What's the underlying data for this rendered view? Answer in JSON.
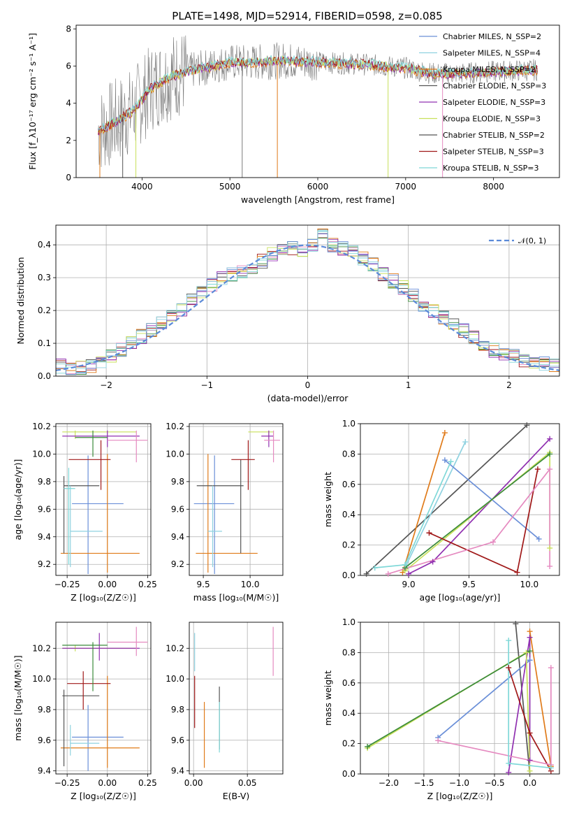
{
  "figure_title": "PLATE=1498, MJD=52914, FIBERID=0598, z=0.085",
  "colors": {
    "Chabrier MILES": "#6a8fd8",
    "Salpeter MILES": "#8fd2e0",
    "Kroupa MILES": "#e07b1a",
    "Chabrier ELODIE": "#555555",
    "Salpeter ELODIE": "#9030b0",
    "Kroupa ELODIE": "#c8e05a",
    "Chabrier STELIB": "#555555",
    "Salpeter STELIB": "#a01818",
    "Kroupa STELIB": "#7fd8d8",
    "extra_pink": "#e58ac0",
    "extra_green": "#3a8a3a",
    "normal": "#5b8ad8"
  },
  "chart_data": [
    {
      "id": "spectrum",
      "type": "line",
      "title": "PLATE=1498, MJD=52914, FIBERID=0598, z=0.085",
      "xlabel": "wavelength [Angstrom, rest frame]",
      "ylabel": "Flux [f_λ10⁻¹⁷ erg cm⁻² s⁻¹ A⁻¹]",
      "xlim": [
        3250,
        8750
      ],
      "ylim": [
        0,
        8.2
      ],
      "xticks": [
        "4000",
        "5000",
        "6000",
        "7000",
        "8000"
      ],
      "yticks": [
        "0",
        "2",
        "4",
        "6",
        "8"
      ],
      "legend_position": "top-right",
      "legend": [
        "Chabrier MILES, N_SSP=2",
        "Salpeter MILES, N_SSP=4",
        "Kroupa MILES, N_SSP=2",
        "Chabrier ELODIE, N_SSP=3",
        "Salpeter ELODIE, N_SSP=3",
        "Kroupa ELODIE, N_SSP=3",
        "Chabrier STELIB, N_SSP=2",
        "Salpeter STELIB, N_SSP=3",
        "Kroupa STELIB, N_SSP=3"
      ],
      "continuum": [
        [
          3500,
          2.5
        ],
        [
          3700,
          3.0
        ],
        [
          3900,
          3.6
        ],
        [
          4000,
          4.2
        ],
        [
          4100,
          4.8
        ],
        [
          4300,
          5.4
        ],
        [
          4500,
          5.7
        ],
        [
          4800,
          6.0
        ],
        [
          5000,
          6.2
        ],
        [
          5300,
          6.2
        ],
        [
          5600,
          6.3
        ],
        [
          6000,
          6.2
        ],
        [
          6500,
          6.1
        ],
        [
          7000,
          5.9
        ],
        [
          7300,
          5.6
        ],
        [
          7600,
          5.6
        ],
        [
          8000,
          5.7
        ],
        [
          8500,
          5.8
        ]
      ]
    },
    {
      "id": "residuals",
      "type": "bar",
      "xlabel": "(data-model)/error",
      "ylabel": "Normed distribution",
      "xlim": [
        -2.5,
        2.5
      ],
      "ylim": [
        0,
        0.46
      ],
      "xticks": [
        "−2",
        "−1",
        "0",
        "1",
        "2"
      ],
      "yticks": [
        "0.0",
        "0.1",
        "0.2",
        "0.3",
        "0.4"
      ],
      "legend": "𝒩(0, 1)",
      "legend_position": "top-right",
      "bin_width": 0.1,
      "histogram": [
        0.03,
        0.02,
        0.025,
        0.03,
        0.04,
        0.06,
        0.08,
        0.1,
        0.12,
        0.14,
        0.16,
        0.18,
        0.2,
        0.23,
        0.26,
        0.28,
        0.3,
        0.31,
        0.32,
        0.33,
        0.35,
        0.37,
        0.38,
        0.39,
        0.38,
        0.4,
        0.43,
        0.4,
        0.39,
        0.38,
        0.36,
        0.34,
        0.31,
        0.29,
        0.27,
        0.25,
        0.22,
        0.2,
        0.18,
        0.16,
        0.14,
        0.12,
        0.1,
        0.08,
        0.07,
        0.06,
        0.05,
        0.045,
        0.04,
        0.035
      ]
    },
    {
      "id": "age_vs_Z",
      "type": "scatter",
      "xlabel": "Z [log₁₀(Z/Z☉)]",
      "ylabel": "age  [log₁₀(age/yr)]",
      "xlim": [
        -0.32,
        0.27
      ],
      "ylim": [
        9.12,
        10.22
      ],
      "xticks": [
        "−0.25",
        "0.00",
        "0.25"
      ],
      "yticks": [
        "9.2",
        "9.4",
        "9.6",
        "9.8",
        "10.0",
        "10.2"
      ],
      "points": [
        {
          "c": "#6a8fd8",
          "x": -0.12,
          "y": 9.64,
          "xe": [
            -0.22,
            0.1
          ],
          "ye": [
            9.13,
            9.99
          ]
        },
        {
          "c": "#e07b1a",
          "x": 0.0,
          "y": 9.28,
          "xe": [
            -0.29,
            0.2
          ],
          "ye": [
            9.14,
            10.0
          ]
        },
        {
          "c": "#555555",
          "x": -0.27,
          "y": 9.77,
          "xe": [
            -0.27,
            -0.05
          ],
          "ye": [
            9.28,
            9.84
          ]
        },
        {
          "c": "#8fd2e0",
          "x": -0.23,
          "y": 9.44,
          "xe": [
            -0.23,
            -0.03
          ],
          "ye": [
            9.18,
            9.77
          ]
        },
        {
          "c": "#c8e05a",
          "x": -0.2,
          "y": 10.16,
          "xe": [
            -0.28,
            0.18
          ],
          "ye": [
            10.11,
            10.17
          ]
        },
        {
          "c": "#9030b0",
          "x": 0.0,
          "y": 10.13,
          "xe": [
            -0.28,
            0.2
          ],
          "ye": [
            10.05,
            10.17
          ]
        },
        {
          "c": "#a01818",
          "x": -0.04,
          "y": 9.96,
          "xe": [
            -0.24,
            0.02
          ],
          "ye": [
            9.74,
            10.1
          ]
        },
        {
          "c": "#3a8a3a",
          "x": -0.09,
          "y": 10.12,
          "xe": [
            -0.2,
            0.0
          ],
          "ye": [
            9.98,
            10.17
          ]
        },
        {
          "c": "#e58ac0",
          "x": 0.18,
          "y": 10.1,
          "xe": [
            0.0,
            0.25
          ],
          "ye": [
            9.94,
            10.17
          ]
        },
        {
          "c": "#7fd8d8",
          "x": -0.24,
          "y": 9.75,
          "xe": [
            -0.27,
            -0.2
          ],
          "ye": [
            9.2,
            9.9
          ]
        }
      ]
    },
    {
      "id": "age_vs_mass",
      "type": "scatter",
      "xlabel": "mass [log₁₀(M/M☉)]",
      "ylabel": "",
      "xlim": [
        9.35,
        10.35
      ],
      "ylim": [
        9.12,
        10.22
      ],
      "xticks": [
        "9.5",
        "10.0"
      ],
      "yticks": [
        "9.2",
        "9.4",
        "9.6",
        "9.8",
        "10.0",
        "10.2"
      ],
      "points": [
        {
          "c": "#6a8fd8",
          "x": 9.62,
          "y": 9.64,
          "xe": [
            9.4,
            9.83
          ],
          "ye": [
            9.13,
            9.99
          ]
        },
        {
          "c": "#e07b1a",
          "x": 9.55,
          "y": 9.28,
          "xe": [
            9.42,
            10.08
          ],
          "ye": [
            9.14,
            10.0
          ]
        },
        {
          "c": "#555555",
          "x": 9.9,
          "y": 9.77,
          "xe": [
            9.43,
            9.93
          ],
          "ye": [
            9.28,
            9.96
          ]
        },
        {
          "c": "#8fd2e0",
          "x": 9.6,
          "y": 9.44,
          "xe": [
            9.55,
            9.7
          ],
          "ye": [
            9.18,
            9.77
          ]
        },
        {
          "c": "#c8e05a",
          "x": 10.2,
          "y": 10.16,
          "xe": [
            9.98,
            10.25
          ],
          "ye": [
            10.11,
            10.17
          ]
        },
        {
          "c": "#9030b0",
          "x": 10.2,
          "y": 10.13,
          "xe": [
            10.12,
            10.25
          ],
          "ye": [
            10.05,
            10.17
          ]
        },
        {
          "c": "#a01818",
          "x": 9.98,
          "y": 9.96,
          "xe": [
            9.8,
            10.05
          ],
          "ye": [
            9.74,
            10.1
          ]
        },
        {
          "c": "#e58ac0",
          "x": 10.25,
          "y": 10.1,
          "xe": [
            10.15,
            10.32
          ],
          "ye": [
            9.94,
            10.17
          ]
        }
      ]
    },
    {
      "id": "weight_vs_age",
      "type": "line",
      "xlabel": "age  [log₁₀(age/yr)]",
      "ylabel": "mass weight",
      "xlim": [
        8.6,
        10.25
      ],
      "ylim": [
        0.0,
        1.0
      ],
      "xticks": [
        "9.0",
        "9.5",
        "10.0"
      ],
      "yticks": [
        "0.0",
        "0.2",
        "0.4",
        "0.6",
        "0.8",
        "1.0"
      ],
      "series": [
        {
          "c": "#555555",
          "pts": [
            [
              8.65,
              0.01
            ],
            [
              9.98,
              0.99
            ]
          ]
        },
        {
          "c": "#e07b1a",
          "pts": [
            [
              8.95,
              0.02
            ],
            [
              9.3,
              0.94
            ]
          ]
        },
        {
          "c": "#8fd2e0",
          "pts": [
            [
              8.97,
              0.05
            ],
            [
              9.47,
              0.88
            ]
          ]
        },
        {
          "c": "#6a8fd8",
          "pts": [
            [
              9.3,
              0.76
            ],
            [
              10.08,
              0.24
            ]
          ]
        },
        {
          "c": "#9030b0",
          "pts": [
            [
              9.0,
              0.01
            ],
            [
              9.2,
              0.09
            ],
            [
              10.17,
              0.9
            ]
          ]
        },
        {
          "c": "#c8e05a",
          "pts": [
            [
              8.97,
              0.03
            ],
            [
              10.17,
              0.81
            ],
            [
              10.17,
              0.18
            ]
          ]
        },
        {
          "c": "#3a8a3a",
          "pts": [
            [
              8.97,
              0.05
            ],
            [
              10.17,
              0.8
            ]
          ]
        },
        {
          "c": "#a01818",
          "pts": [
            [
              9.17,
              0.28
            ],
            [
              9.9,
              0.02
            ],
            [
              10.07,
              0.7
            ]
          ]
        },
        {
          "c": "#e58ac0",
          "pts": [
            [
              8.83,
              0.01
            ],
            [
              9.7,
              0.22
            ],
            [
              10.17,
              0.7
            ],
            [
              10.17,
              0.06
            ]
          ]
        },
        {
          "c": "#7fd8d8",
          "pts": [
            [
              8.72,
              0.05
            ],
            [
              8.97,
              0.07
            ],
            [
              9.35,
              0.75
            ]
          ]
        }
      ]
    },
    {
      "id": "mass_vs_Z",
      "type": "scatter",
      "xlabel": "Z [log₁₀(Z/Z☉)]",
      "ylabel": "mass [log₁₀(M/M☉)]",
      "xlim": [
        -0.32,
        0.27
      ],
      "ylim": [
        9.38,
        10.37
      ],
      "xticks": [
        "−0.25",
        "0.00",
        "0.25"
      ],
      "yticks": [
        "9.4",
        "9.6",
        "9.8",
        "10.0",
        "10.2"
      ],
      "points": [
        {
          "c": "#6a8fd8",
          "x": -0.12,
          "y": 9.62,
          "xe": [
            -0.22,
            0.1
          ],
          "ye": [
            9.4,
            9.83
          ]
        },
        {
          "c": "#e07b1a",
          "x": 0.0,
          "y": 9.55,
          "xe": [
            -0.29,
            0.2
          ],
          "ye": [
            9.42,
            10.02
          ]
        },
        {
          "c": "#555555",
          "x": -0.27,
          "y": 9.89,
          "xe": [
            -0.28,
            -0.05
          ],
          "ye": [
            9.43,
            9.93
          ]
        },
        {
          "c": "#8fd2e0",
          "x": -0.23,
          "y": 9.58,
          "xe": [
            -0.23,
            -0.05
          ],
          "ye": [
            9.5,
            9.7
          ]
        },
        {
          "c": "#c8e05a",
          "x": -0.2,
          "y": 10.2,
          "xe": [
            -0.28,
            0.18
          ],
          "ye": [
            10.18,
            10.22
          ]
        },
        {
          "c": "#9030b0",
          "x": -0.05,
          "y": 10.2,
          "xe": [
            -0.28,
            0.2
          ],
          "ye": [
            10.12,
            10.3
          ]
        },
        {
          "c": "#a01818",
          "x": -0.15,
          "y": 9.97,
          "xe": [
            -0.25,
            0.02
          ],
          "ye": [
            9.8,
            10.05
          ]
        },
        {
          "c": "#3a8a3a",
          "x": -0.09,
          "y": 10.22,
          "xe": [
            -0.28,
            0.0
          ],
          "ye": [
            9.92,
            10.24
          ]
        },
        {
          "c": "#e58ac0",
          "x": 0.18,
          "y": 10.24,
          "xe": [
            0.0,
            0.25
          ],
          "ye": [
            10.15,
            10.34
          ]
        }
      ]
    },
    {
      "id": "mass_vs_EBV",
      "type": "scatter",
      "xlabel": "E(B-V)",
      "ylabel": "",
      "xlim": [
        -0.004,
        0.083
      ],
      "ylim": [
        9.38,
        10.37
      ],
      "xticks": [
        "0.00",
        "0.05"
      ],
      "yticks": [
        "9.4",
        "9.6",
        "9.8",
        "10.0",
        "10.2"
      ],
      "points": [
        {
          "c": "#8fd2e0",
          "x": 0.001,
          "y": 10.2,
          "xe": [
            0.001,
            0.001
          ],
          "ye": [
            10.05,
            10.3
          ]
        },
        {
          "c": "#a01818",
          "x": 0.001,
          "y": 9.85,
          "xe": [
            0.001,
            0.001
          ],
          "ye": [
            9.68,
            10.02
          ]
        },
        {
          "c": "#e07b1a",
          "x": 0.01,
          "y": 9.6,
          "xe": [
            0.01,
            0.01
          ],
          "ye": [
            9.42,
            9.85
          ]
        },
        {
          "c": "#555555",
          "x": 0.024,
          "y": 9.75,
          "xe": [
            0.024,
            0.024
          ],
          "ye": [
            9.54,
            9.95
          ]
        },
        {
          "c": "#7fd8d8",
          "x": 0.024,
          "y": 9.7,
          "xe": [
            0.024,
            0.024
          ],
          "ye": [
            9.52,
            9.85
          ]
        },
        {
          "c": "#e58ac0",
          "x": 0.074,
          "y": 10.2,
          "xe": [
            0.074,
            0.074
          ],
          "ye": [
            10.02,
            10.34
          ]
        }
      ]
    },
    {
      "id": "weight_vs_Z",
      "type": "line",
      "xlabel": "Z [log₁₀(Z/Z☉)]",
      "ylabel": "mass weight",
      "xlim": [
        -2.4,
        0.42
      ],
      "ylim": [
        0.0,
        1.0
      ],
      "xticks": [
        "−2.0",
        "−1.5",
        "−1.0",
        "−0.5",
        "0.0"
      ],
      "yticks": [
        "0.0",
        "0.2",
        "0.4",
        "0.6",
        "0.8",
        "1.0"
      ],
      "series": [
        {
          "c": "#555555",
          "pts": [
            [
              -0.2,
              0.99
            ],
            [
              0.0,
              0.0
            ]
          ]
        },
        {
          "c": "#e07b1a",
          "pts": [
            [
              0.0,
              0.94
            ],
            [
              0.3,
              0.05
            ]
          ]
        },
        {
          "c": "#6a8fd8",
          "pts": [
            [
              -1.3,
              0.24
            ],
            [
              0.0,
              0.75
            ]
          ]
        },
        {
          "c": "#9030b0",
          "pts": [
            [
              -0.3,
              0.01
            ],
            [
              0.0,
              0.9
            ],
            [
              0.0,
              0.09
            ]
          ]
        },
        {
          "c": "#c8e05a",
          "pts": [
            [
              -2.3,
              0.17
            ],
            [
              -0.05,
              0.8
            ],
            [
              0.0,
              0.02
            ]
          ]
        },
        {
          "c": "#3a8a3a",
          "pts": [
            [
              -2.3,
              0.18
            ],
            [
              0.0,
              0.81
            ]
          ]
        },
        {
          "c": "#a01818",
          "pts": [
            [
              -0.3,
              0.7
            ],
            [
              0.0,
              0.27
            ],
            [
              0.3,
              0.02
            ]
          ]
        },
        {
          "c": "#e58ac0",
          "pts": [
            [
              -1.3,
              0.22
            ],
            [
              0.3,
              0.06
            ],
            [
              0.3,
              0.7
            ]
          ]
        },
        {
          "c": "#7fd8d8",
          "pts": [
            [
              -0.3,
              0.88
            ],
            [
              -0.3,
              0.07
            ],
            [
              0.3,
              0.04
            ]
          ]
        }
      ]
    }
  ]
}
